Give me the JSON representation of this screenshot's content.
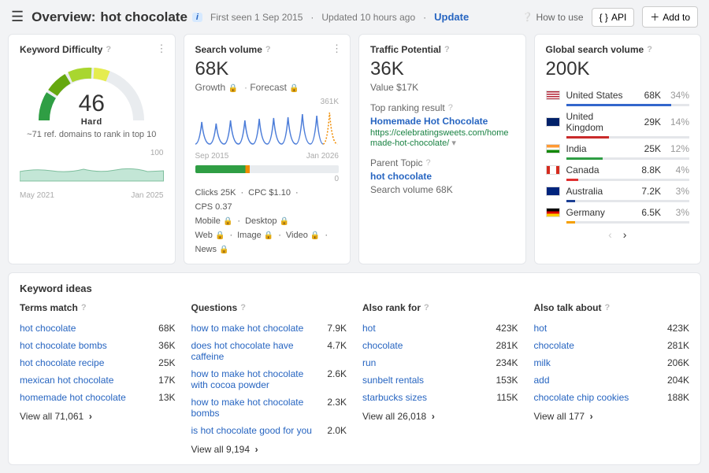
{
  "header": {
    "title_prefix": "Overview:",
    "keyword": "hot chocolate",
    "first_seen": "First seen 1 Sep 2015",
    "updated": "Updated 10 hours ago",
    "update": "Update",
    "how_to_use": "How to use",
    "api": "API",
    "add_to": "Add to"
  },
  "kd": {
    "title": "Keyword Difficulty",
    "score": "46",
    "label": "Hard",
    "desc": "~71 ref. domains to rank in top 10",
    "y_max": "100",
    "x_start": "May 2021",
    "x_end": "Jan 2025",
    "gauge_colors": [
      "#2f9e44",
      "#66a80f",
      "#a9d62f",
      "#e5ec4f"
    ],
    "gauge_bg": "#e9ecef",
    "area_fill": "#c3e6d6",
    "area_stroke": "#7fbf9e"
  },
  "sv": {
    "title": "Search volume",
    "volume": "68K",
    "growth": "Growth",
    "forecast": "Forecast",
    "y_max": "361K",
    "x_start": "Sep 2015",
    "x_end": "Jan 2026",
    "line_color": "#4c7dd9",
    "forecast_color": "#f08c00",
    "clicks": "Clicks 25K",
    "cpc": "CPC $1.10",
    "cps": "CPS 0.37",
    "mobile": "Mobile",
    "desktop": "Desktop",
    "web": "Web",
    "image": "Image",
    "video": "Video",
    "news": "News"
  },
  "tp": {
    "title": "Traffic Potential",
    "value": "36K",
    "subvalue": "Value $17K",
    "top_label": "Top ranking result",
    "top_title": "Homemade Hot Chocolate",
    "top_url": "https://celebratingsweets.com/homemade-hot-chocolate/",
    "parent_label": "Parent Topic",
    "parent": "hot chocolate",
    "parent_vol_label": "Search volume 68K"
  },
  "gv": {
    "title": "Global search volume",
    "value": "200K",
    "rows": [
      {
        "country": "United States",
        "vol": "68K",
        "pct": "34%",
        "pctn": 34,
        "color": "#3366cc",
        "flag": "linear-gradient(180deg,#b22234 0 15%,#fff 15% 30%,#b22234 30% 45%,#fff 45% 60%,#b22234 60% 75%,#fff 75% 90%,#b22234 90% 100%)"
      },
      {
        "country": "United Kingdom",
        "vol": "29K",
        "pct": "14%",
        "pctn": 14,
        "color": "#c92a2a",
        "flag": "linear-gradient(0deg,#012169,#012169)"
      },
      {
        "country": "India",
        "vol": "25K",
        "pct": "12%",
        "pctn": 12,
        "color": "#2f9e44",
        "flag": "linear-gradient(180deg,#ff9933 0 33%,#fff 33% 66%,#138808 66% 100%)"
      },
      {
        "country": "Canada",
        "vol": "8.8K",
        "pct": "4%",
        "pctn": 4,
        "color": "#e03131",
        "flag": "linear-gradient(90deg,#d52b1e 0 25%,#fff 25% 75%,#d52b1e 75% 100%)"
      },
      {
        "country": "Australia",
        "vol": "7.2K",
        "pct": "3%",
        "pctn": 3,
        "color": "#1c3f94",
        "flag": "linear-gradient(0deg,#00247d,#00247d)"
      },
      {
        "country": "Germany",
        "vol": "6.5K",
        "pct": "3%",
        "pctn": 3,
        "color": "#f59f00",
        "flag": "linear-gradient(180deg,#000 0 33%,#dd0000 33% 66%,#ffce00 66% 100%)"
      }
    ]
  },
  "ideas": {
    "heading": "Keyword ideas",
    "cols": [
      {
        "title": "Terms match",
        "rows": [
          {
            "k": "hot chocolate",
            "v": "68K"
          },
          {
            "k": "hot chocolate bombs",
            "v": "36K"
          },
          {
            "k": "hot chocolate recipe",
            "v": "25K"
          },
          {
            "k": "mexican hot chocolate",
            "v": "17K"
          },
          {
            "k": "homemade hot chocolate",
            "v": "13K"
          }
        ],
        "view": "View all 71,061"
      },
      {
        "title": "Questions",
        "rows": [
          {
            "k": "how to make hot chocolate",
            "v": "7.9K"
          },
          {
            "k": "does hot chocolate have caffeine",
            "v": "4.7K"
          },
          {
            "k": "how to make hot chocolate with cocoa powder",
            "v": "2.6K"
          },
          {
            "k": "how to make hot chocolate bombs",
            "v": "2.3K"
          },
          {
            "k": "is hot chocolate good for you",
            "v": "2.0K"
          }
        ],
        "view": "View all 9,194"
      },
      {
        "title": "Also rank for",
        "rows": [
          {
            "k": "hot",
            "v": "423K"
          },
          {
            "k": "chocolate",
            "v": "281K"
          },
          {
            "k": "run",
            "v": "234K"
          },
          {
            "k": "sunbelt rentals",
            "v": "153K"
          },
          {
            "k": "starbucks sizes",
            "v": "115K"
          }
        ],
        "view": "View all 26,018"
      },
      {
        "title": "Also talk about",
        "rows": [
          {
            "k": "hot",
            "v": "423K"
          },
          {
            "k": "chocolate",
            "v": "281K"
          },
          {
            "k": "milk",
            "v": "206K"
          },
          {
            "k": "add",
            "v": "204K"
          },
          {
            "k": "chocolate chip cookies",
            "v": "188K"
          }
        ],
        "view": "View all 177"
      }
    ]
  }
}
